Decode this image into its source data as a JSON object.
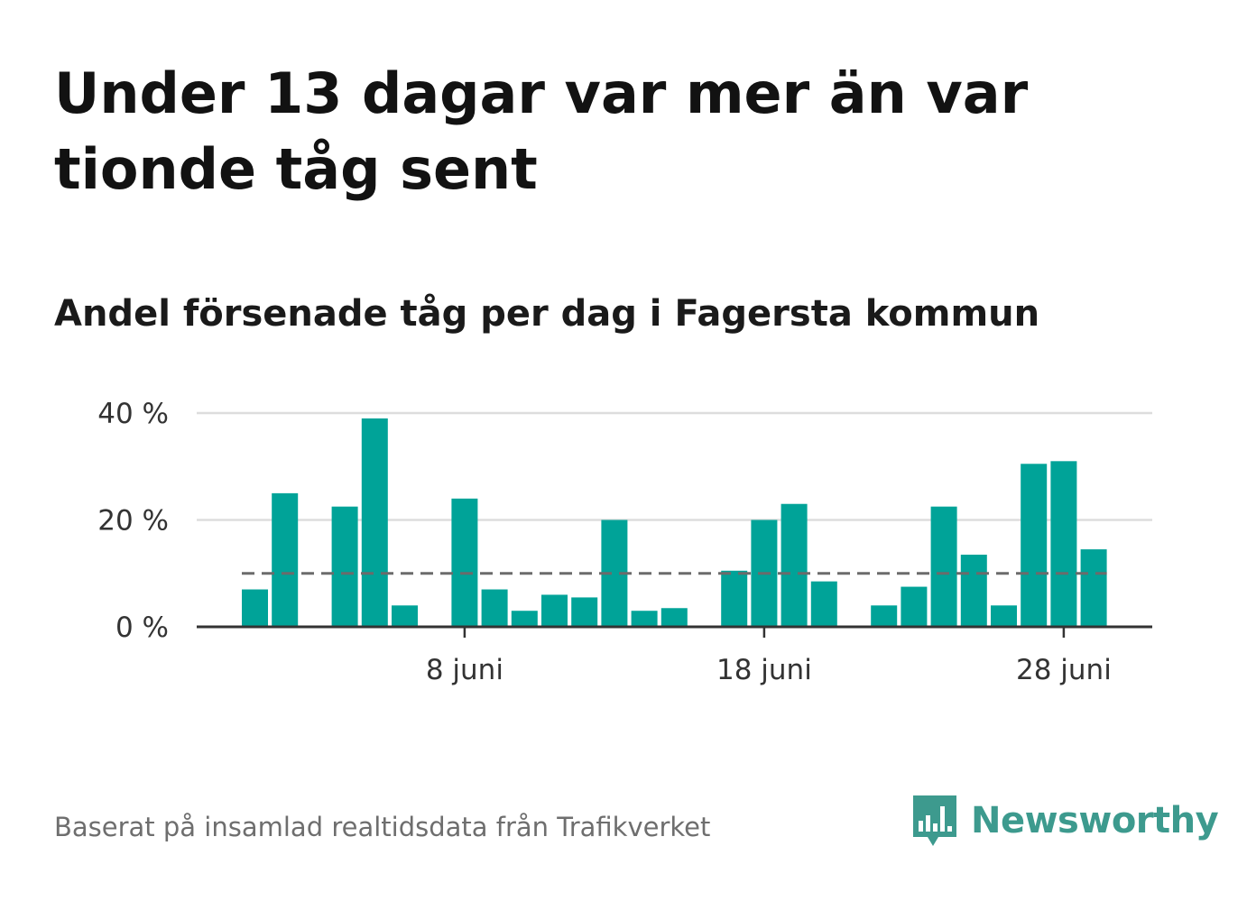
{
  "title": "Under 13 dagar var mer än var tionde tåg sent",
  "subtitle": "Andel försenade tåg per dag i Fagersta kommun",
  "footer": "Baserat på insamlad realtidsdata från Trafikverket",
  "brand": {
    "name": "Newsworthy",
    "icon": "newsworthy-logo-icon",
    "color": "#3d9a8e"
  },
  "colors": {
    "bar": "#00a398",
    "reference_line": "#6b6b6b",
    "grid": "#dddddd",
    "baseline": "#333333"
  },
  "chart_data": {
    "type": "bar",
    "x_unit": "day of June",
    "categories": [
      1,
      2,
      3,
      4,
      5,
      6,
      7,
      8,
      9,
      10,
      11,
      12,
      13,
      14,
      15,
      16,
      17,
      18,
      19,
      20,
      21,
      22,
      23,
      24,
      25,
      26,
      27,
      28,
      29
    ],
    "values": [
      7,
      25,
      0,
      22.5,
      39,
      4,
      0,
      24,
      7,
      3,
      6,
      5.5,
      20,
      3,
      3.5,
      0,
      10.5,
      20,
      23,
      8.5,
      0,
      4,
      7.5,
      22.5,
      13.5,
      4,
      30.5,
      31,
      14.5
    ],
    "reference_line": 10,
    "ylim": [
      0,
      40
    ],
    "yticks": [
      0,
      20,
      40
    ],
    "ytick_labels": [
      "0 %",
      "20 %",
      "40 %"
    ],
    "xticks": [
      8,
      18,
      28
    ],
    "xtick_labels": [
      "8 juni",
      "18 juni",
      "28 juni"
    ],
    "grid": true,
    "legend": "none"
  }
}
